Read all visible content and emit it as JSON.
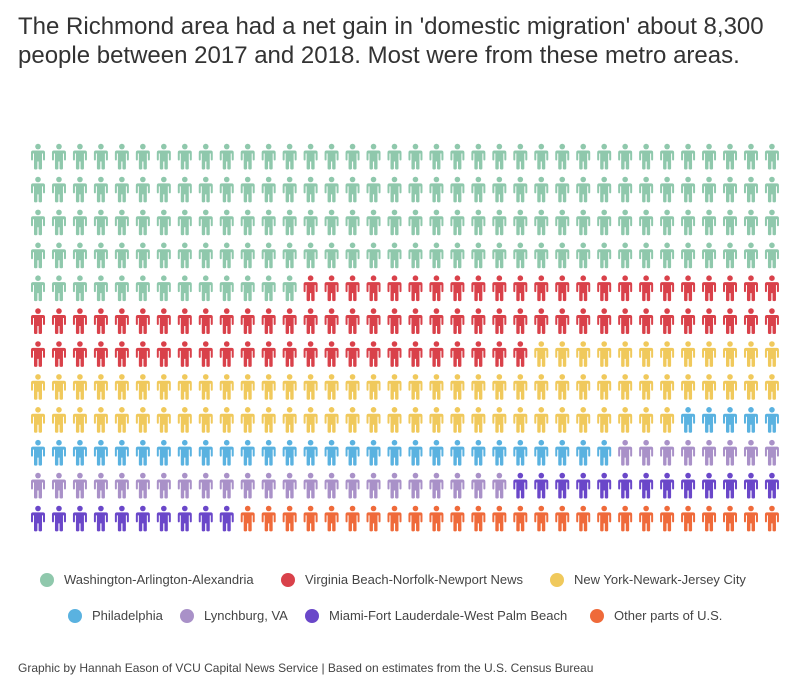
{
  "header": {
    "title": "The Richmond area had a net gain in 'domestic migration' about 8,300 people between 2017 and 2018. Most were from these metro areas."
  },
  "chart_data": {
    "type": "waffle",
    "rows": 12,
    "columns": 36,
    "series": [
      {
        "name": "Washington-Arlington-Alexandria",
        "count": 157,
        "color": "#8fc8ac"
      },
      {
        "name": "Virginia Beach-Norfolk-Newport News",
        "count": 83,
        "color": "#d9414a"
      },
      {
        "name": "New York-Newark-Jersey City",
        "count": 79,
        "color": "#f0c95c"
      },
      {
        "name": "Philadelphia",
        "count": 33,
        "color": "#5ab2e0"
      },
      {
        "name": "Lynchburg, VA",
        "count": 31,
        "color": "#a991c8"
      },
      {
        "name": "Miami-Fort Lauderdale-West Palm Beach",
        "count": 23,
        "color": "#6a47c9"
      },
      {
        "name": "Other parts of U.S.",
        "count": 26,
        "color": "#ef6a3a"
      }
    ]
  },
  "footer": {
    "credit": "Graphic by Hannah Eason of VCU Capital News Service | Based on estimates from the U.S. Census Bureau"
  }
}
